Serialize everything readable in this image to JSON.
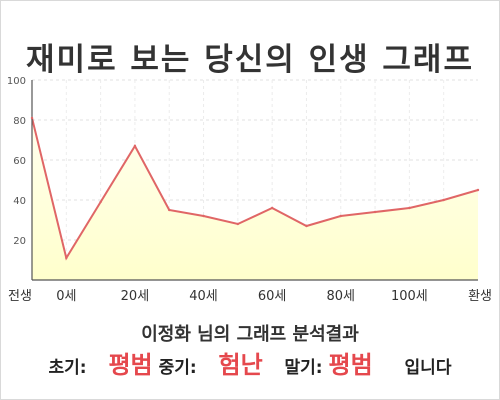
{
  "header": {
    "title": "재미로 보는 당신의 인생 그래프"
  },
  "chart_data": {
    "type": "area",
    "title": "재미로 보는 당신의 인생 그래프",
    "xlabel": "",
    "ylabel": "",
    "ylim": [
      0,
      100
    ],
    "yticks": [
      20,
      40,
      60,
      80,
      100
    ],
    "x_tick_labels": [
      "전생",
      "0세",
      "20세",
      "40세",
      "60세",
      "80세",
      "100세",
      "환생"
    ],
    "x": [
      "전생",
      "0세",
      "",
      "20세",
      "",
      "40세",
      "",
      "60세",
      "",
      "80세",
      "",
      "100세",
      "",
      "환생"
    ],
    "values": [
      81,
      11,
      39,
      67,
      35,
      32,
      28,
      36,
      27,
      32,
      34,
      36,
      40,
      45
    ],
    "line_color": "#e06666",
    "fill_top": "#ffffee",
    "fill_bottom": "#ffffcc",
    "grid": true
  },
  "result": {
    "heading": "이정화 님의 그래프 분석결과",
    "early_label": "초기:",
    "early_value": "평범",
    "middle_label": "중기:",
    "middle_value": "험난",
    "late_label": "말기:",
    "late_value": "평범",
    "suffix": "입니다"
  }
}
